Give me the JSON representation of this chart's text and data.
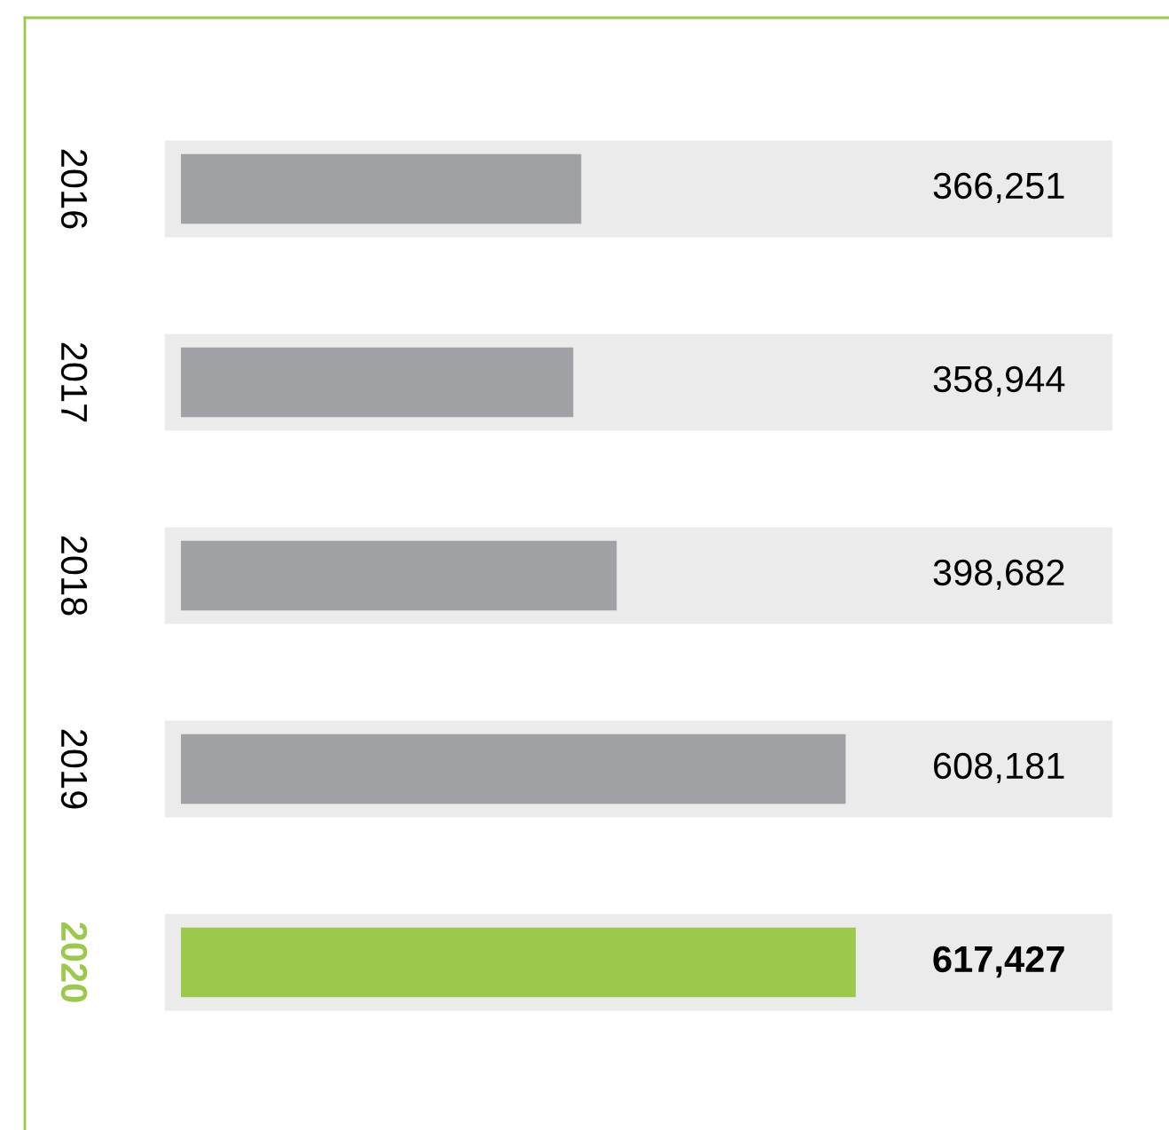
{
  "chart_data": {
    "type": "bar",
    "orientation": "horizontal",
    "categories": [
      "2016",
      "2017",
      "2018",
      "2019",
      "2020"
    ],
    "values": [
      366251,
      358944,
      398682,
      608181,
      617427
    ],
    "value_labels": [
      "366,251",
      "358,944",
      "398,682",
      "608,181",
      "617,427"
    ],
    "colors": [
      "#a0a1a4",
      "#a0a1a4",
      "#a0a1a4",
      "#a0a1a4",
      "#9bc94b"
    ]
  }
}
